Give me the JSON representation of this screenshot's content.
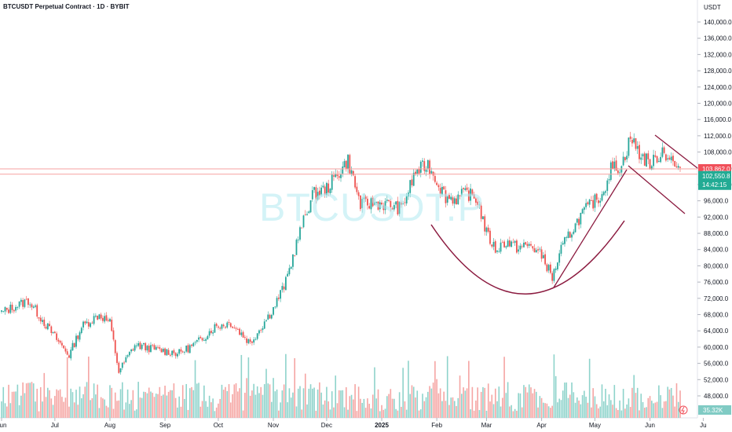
{
  "header": {
    "title": "BTCUSDT Perpetual Contract · 1D · BYBIT",
    "currency": "USDT",
    "watermark": "BTCUSDT.P"
  },
  "colors": {
    "up": "#26a69a",
    "down": "#ef5350",
    "up_volume": "#8ed3cb",
    "down_volume": "#f5a5a3",
    "hline": "#f7a1a0",
    "pattern": "#8b1a3f",
    "tag_red": "#f0505a",
    "tag_green": "#22ab94",
    "vol_tag": "#80cbc4"
  },
  "chart_data": {
    "type": "candlestick",
    "symbol": "BTCUSDT.P",
    "y_axis": {
      "ticks": [
        "140,000.0",
        "136,000.0",
        "132,000.0",
        "128,000.0",
        "124,000.0",
        "120,000.0",
        "116,000.0",
        "112,000.0",
        "108,000.0",
        "104,000.0",
        "100,000.0",
        "96,000.0",
        "92,000.0",
        "88,000.0",
        "84,000.0",
        "80,000.0",
        "76,000.0",
        "72,000.0",
        "68,000.0",
        "64,000.0",
        "60,000.0",
        "56,000.0",
        "52,000.0",
        "48,000.0"
      ],
      "range": [
        44000,
        142000
      ]
    },
    "x_axis": {
      "ticks": [
        {
          "label": "Jun",
          "idx": 0
        },
        {
          "label": "Jul",
          "idx": 30
        },
        {
          "label": "Aug",
          "idx": 61
        },
        {
          "label": "Sep",
          "idx": 92
        },
        {
          "label": "Oct",
          "idx": 122
        },
        {
          "label": "Nov",
          "idx": 153
        },
        {
          "label": "Dec",
          "idx": 183
        },
        {
          "label": "2025",
          "idx": 214,
          "bold": true
        },
        {
          "label": "Feb",
          "idx": 245
        },
        {
          "label": "Mar",
          "idx": 273
        },
        {
          "label": "Apr",
          "idx": 304
        },
        {
          "label": "May",
          "idx": 334
        },
        {
          "label": "Jun",
          "idx": 365
        },
        {
          "label": "Ju",
          "idx": 395
        }
      ]
    },
    "anchors": [
      [
        0,
        68500
      ],
      [
        15,
        71500
      ],
      [
        30,
        62500
      ],
      [
        38,
        58000
      ],
      [
        45,
        65000
      ],
      [
        55,
        68000
      ],
      [
        61,
        66000
      ],
      [
        66,
        54000
      ],
      [
        75,
        60500
      ],
      [
        92,
        59000
      ],
      [
        100,
        58500
      ],
      [
        110,
        61000
      ],
      [
        120,
        65000
      ],
      [
        129,
        66000
      ],
      [
        140,
        61000
      ],
      [
        153,
        69500
      ],
      [
        160,
        76000
      ],
      [
        167,
        87000
      ],
      [
        175,
        97500
      ],
      [
        183,
        99000
      ],
      [
        195,
        106000
      ],
      [
        202,
        95000
      ],
      [
        210,
        95500
      ],
      [
        218,
        95000
      ],
      [
        225,
        94000
      ],
      [
        233,
        103000
      ],
      [
        240,
        105000
      ],
      [
        245,
        101000
      ],
      [
        250,
        97000
      ],
      [
        256,
        96500
      ],
      [
        262,
        98000
      ],
      [
        268,
        96000
      ],
      [
        273,
        88000
      ],
      [
        278,
        84000
      ],
      [
        284,
        86000
      ],
      [
        290,
        84500
      ],
      [
        298,
        85000
      ],
      [
        305,
        82000
      ],
      [
        310,
        77000
      ],
      [
        315,
        84000
      ],
      [
        320,
        88000
      ],
      [
        327,
        93000
      ],
      [
        334,
        96000
      ],
      [
        338,
        97500
      ],
      [
        343,
        104000
      ],
      [
        349,
        104500
      ],
      [
        354,
        111500
      ],
      [
        360,
        107000
      ],
      [
        366,
        105000
      ],
      [
        372,
        108500
      ],
      [
        377,
        106000
      ],
      [
        382,
        102500
      ]
    ],
    "horizontal_lines": [
      {
        "price": 103862.0,
        "label": "103,862.0"
      },
      {
        "price": 102550.8,
        "label": "102,550.8"
      }
    ],
    "last_price_countdown": "14:42:15",
    "volume_label": "35.32K",
    "annotations": [
      {
        "type": "cup",
        "description": "rounded bottom arc"
      },
      {
        "type": "trendline",
        "description": "rising line from April low"
      },
      {
        "type": "channel",
        "description": "descending parallel lines"
      }
    ]
  }
}
